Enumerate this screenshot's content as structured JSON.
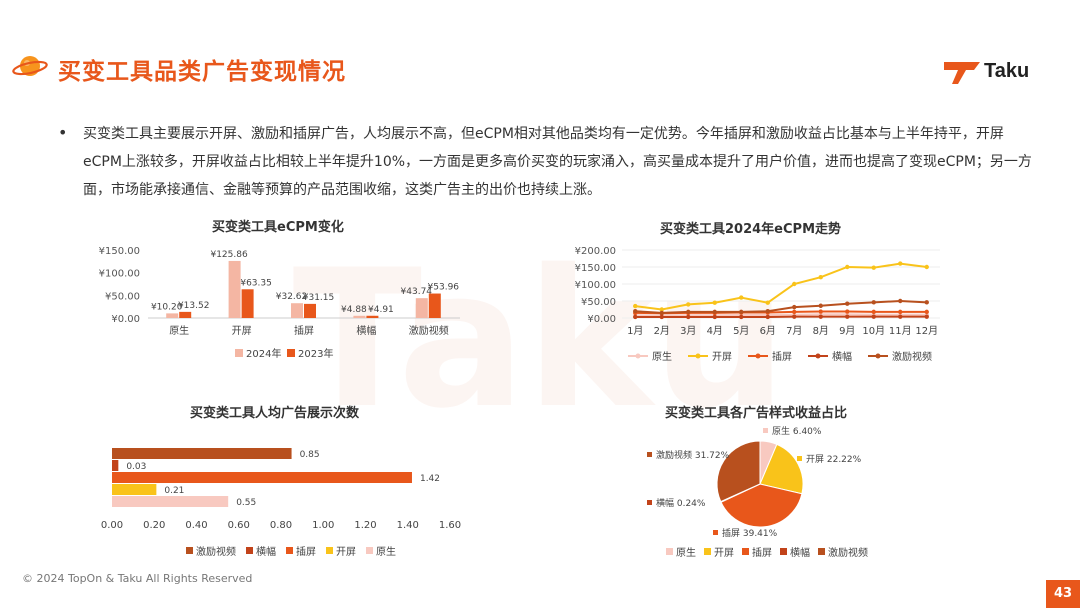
{
  "header": {
    "title": "买变工具品类广告变现情况",
    "logo_text": "Taku"
  },
  "intro": {
    "bullet": "•",
    "text": "买变类工具主要展示开屏、激励和插屏广告，人均展示不高，但eCPM相对其他品类均有一定优势。今年插屏和激励收益占比基本与上半年持平，开屏eCPM上涨较多，开屏收益占比相较上半年提升10%，一方面是更多高价买变的玩家涌入，高买量成本提升了用户价值，进而也提高了变现eCPM；另一方面，市场能承接通信、金融等预算的产品范围收缩，这类广告主的出价也持续上涨。"
  },
  "footer": {
    "copyright": "© 2024 TopOn & Taku All Rights Reserved",
    "page_number": "43"
  },
  "colors": {
    "accent": "#E8571B",
    "light_pink": "#F4B6A3",
    "orange": "#E8571B",
    "yellow": "#F9C31A",
    "dark_brown": "#B8501E",
    "red_brown": "#C2431A",
    "pale_pink": "#F8C9C0"
  },
  "chart_data": [
    {
      "type": "bar",
      "title": "买变类工具eCPM变化",
      "categories": [
        "原生",
        "开屏",
        "插屏",
        "横幅",
        "激励视频"
      ],
      "series": [
        {
          "name": "2024年",
          "values": [
            10.2,
            125.86,
            32.62,
            4.88,
            43.74
          ],
          "labels": [
            "¥10.20",
            "¥125.86",
            "¥32.62",
            "¥4.88",
            "¥43.74"
          ],
          "color": "#F4B6A3"
        },
        {
          "name": "2023年",
          "values": [
            13.52,
            63.35,
            31.15,
            4.91,
            53.96
          ],
          "labels": [
            "¥13.52",
            "¥63.35",
            "¥31.15",
            "¥4.91",
            "¥53.96"
          ],
          "color": "#E8571B"
        }
      ],
      "ylim": [
        0,
        150
      ],
      "yticks": [
        0,
        50,
        100,
        150
      ],
      "ytick_labels": [
        "¥0.00",
        "¥50.00",
        "¥100.00",
        "¥150.00"
      ],
      "legend": "bottom"
    },
    {
      "type": "line",
      "title": "买变类工具2024年eCPM走势",
      "categories": [
        "1月",
        "2月",
        "3月",
        "4月",
        "5月",
        "6月",
        "7月",
        "8月",
        "9月",
        "10月",
        "11月",
        "12月"
      ],
      "series": [
        {
          "name": "原生",
          "values": [
            8,
            7,
            8,
            8,
            9,
            9,
            10,
            11,
            11,
            10,
            10,
            10
          ],
          "color": "#F8C9C0"
        },
        {
          "name": "开屏",
          "values": [
            35,
            25,
            40,
            45,
            60,
            45,
            100,
            120,
            150,
            148,
            160,
            150
          ],
          "color": "#F9C31A"
        },
        {
          "name": "插屏",
          "values": [
            15,
            14,
            15,
            15,
            16,
            16,
            18,
            19,
            19,
            18,
            18,
            18
          ],
          "color": "#E8571B"
        },
        {
          "name": "横幅",
          "values": [
            3,
            3,
            3,
            3,
            3,
            3,
            4,
            4,
            4,
            4,
            4,
            4
          ],
          "color": "#C2431A"
        },
        {
          "name": "激励视频",
          "values": [
            20,
            15,
            18,
            18,
            18,
            20,
            32,
            36,
            42,
            46,
            50,
            46
          ],
          "color": "#B8501E"
        }
      ],
      "ylim": [
        0,
        200
      ],
      "yticks": [
        0,
        50,
        100,
        150,
        200
      ],
      "ytick_labels": [
        "¥0.00",
        "¥50.00",
        "¥100.00",
        "¥150.00",
        "¥200.00"
      ],
      "legend": "bottom"
    },
    {
      "type": "bar",
      "orientation": "horizontal",
      "title": "买变类工具人均广告展示次数",
      "series": [
        {
          "name": "激励视频",
          "value": 0.85,
          "label": "0.85",
          "color": "#B8501E"
        },
        {
          "name": "横幅",
          "value": 0.03,
          "label": "0.03",
          "color": "#C2431A"
        },
        {
          "name": "插屏",
          "value": 1.42,
          "label": "1.42",
          "color": "#E8571B"
        },
        {
          "name": "开屏",
          "value": 0.21,
          "label": "0.21",
          "color": "#F9C31A"
        },
        {
          "name": "原生",
          "value": 0.55,
          "label": "0.55",
          "color": "#F8C9C0"
        }
      ],
      "xlim": [
        0,
        1.6
      ],
      "xticks": [
        0,
        0.2,
        0.4,
        0.6,
        0.8,
        1.0,
        1.2,
        1.4,
        1.6
      ],
      "xtick_labels": [
        "0.00",
        "0.20",
        "0.40",
        "0.60",
        "0.80",
        "1.00",
        "1.20",
        "1.40",
        "1.60"
      ],
      "legend": "bottom"
    },
    {
      "type": "pie",
      "title": "买变类工具各广告样式收益占比",
      "slices": [
        {
          "name": "原生",
          "value": 6.4,
          "label": "原生 6.40%",
          "color": "#F8C9C0"
        },
        {
          "name": "开屏",
          "value": 22.22,
          "label": "开屏 22.22%",
          "color": "#F9C31A"
        },
        {
          "name": "插屏",
          "value": 39.41,
          "label": "插屏 39.41%",
          "color": "#E8571B"
        },
        {
          "name": "横幅",
          "value": 0.24,
          "label": "横幅 0.24%",
          "color": "#C2431A"
        },
        {
          "name": "激励视频",
          "value": 31.72,
          "label": "激励视频 31.72%",
          "color": "#B8501E"
        }
      ],
      "legend": "bottom"
    }
  ]
}
